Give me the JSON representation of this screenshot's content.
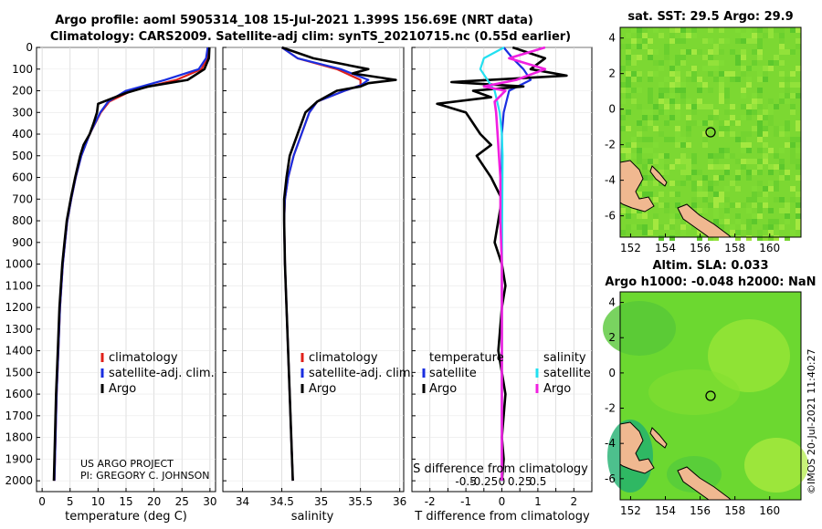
{
  "header": {
    "line1": "Argo profile: aoml 5905314_108 15-Jul-2021 1.399S 156.69E (NRT data)",
    "line2": "Climatology: CARS2009. Satellite-adj clim: synTS_20210715.nc (0.55d earlier)"
  },
  "depth_ticks": [
    "0",
    "100",
    "200",
    "300",
    "400",
    "500",
    "600",
    "700",
    "800",
    "900",
    "1000",
    "1100",
    "1200",
    "1300",
    "1400",
    "1500",
    "1600",
    "1700",
    "1800",
    "1900",
    "2000"
  ],
  "temp_panel": {
    "xlabel": "temperature (deg C)",
    "xticks": [
      "0",
      "5",
      "10",
      "15",
      "20",
      "25",
      "30"
    ],
    "legend": [
      "climatology",
      "satellite-adj. clim.",
      "Argo"
    ],
    "credit1": "US ARGO PROJECT",
    "credit2": "PI: GREGORY C. JOHNSON"
  },
  "sal_panel": {
    "xlabel": "salinity",
    "xticks": [
      "34",
      "34.5",
      "35",
      "35.5",
      "36"
    ],
    "legend": [
      "climatology",
      "satellite-adj. clim.",
      "Argo"
    ]
  },
  "diff_panel": {
    "xlabel": "T difference from climatology",
    "s_label": "S difference from climatology",
    "xticks_t": [
      "-2",
      "-1.5",
      "-1",
      "-0.5",
      "0",
      "0.5",
      "1",
      "1.5",
      "2"
    ],
    "xticks_s": [
      "-0.5",
      "-0.25",
      "0",
      "0.25",
      "0.5"
    ],
    "legend_temp_title": "temperature",
    "legend_sal_title": "salinity",
    "legend_temp": [
      "satellite",
      "Argo"
    ],
    "legend_sal": [
      "satellite",
      "Argo"
    ]
  },
  "map_sst": {
    "title": "sat. SST: 29.5 Argo: 29.9",
    "yticks": [
      "4",
      "2",
      "0",
      "-2",
      "-4",
      "-6"
    ],
    "xticks": [
      "152",
      "154",
      "156",
      "158",
      "160"
    ]
  },
  "map_sla": {
    "title1": "Altim. SLA: 0.033",
    "title2": "Argo h1000: -0.048 h2000: NaN",
    "yticks": [
      "4",
      "2",
      "0",
      "-2",
      "-4",
      "-6"
    ],
    "xticks": [
      "152",
      "154",
      "156",
      "158",
      "160"
    ]
  },
  "watermark": "©IMOS 20-Jul-2021 11:40:27",
  "colors": {
    "climatology": "#e0201a",
    "satellite_adj": "#1a2ee0",
    "argo": "#000000",
    "sat_sal": "#22e0f0",
    "argo_sal": "#f020e0",
    "land": "#f0b890"
  },
  "chart_data": [
    {
      "type": "line",
      "title": "temperature profile",
      "xlabel": "temperature (deg C)",
      "ylabel": "depth",
      "xlim": [
        -1,
        31
      ],
      "ylim": [
        2050,
        0
      ],
      "series": [
        {
          "name": "climatology",
          "depth": [
            0,
            50,
            100,
            150,
            200,
            250,
            300,
            400,
            500,
            600,
            700,
            800,
            900,
            1000,
            1200,
            1400,
            1600,
            1800,
            2000
          ],
          "values": [
            29.6,
            29.5,
            28.5,
            24,
            16,
            12,
            10.5,
            8.5,
            7,
            6,
            5.2,
            4.5,
            4.1,
            3.7,
            3.2,
            2.9,
            2.6,
            2.4,
            2.2
          ]
        },
        {
          "name": "satellite-adj. clim.",
          "depth": [
            0,
            50,
            100,
            150,
            200,
            250,
            300,
            400,
            500,
            600,
            700,
            800,
            900,
            1000,
            1200,
            1400,
            1600,
            1800,
            2000
          ],
          "values": [
            29.6,
            29.3,
            28,
            22,
            15,
            11.8,
            10.4,
            8.5,
            7,
            6,
            5.2,
            4.5,
            4.1,
            3.7,
            3.2,
            2.9,
            2.6,
            2.4,
            2.2
          ]
        },
        {
          "name": "Argo",
          "depth": [
            0,
            50,
            100,
            150,
            180,
            210,
            250,
            260,
            300,
            350,
            400,
            450,
            500,
            600,
            700,
            800,
            900,
            1000,
            1200,
            1400,
            1600,
            1800,
            2000
          ],
          "values": [
            29.9,
            29.8,
            29,
            26,
            19,
            15,
            11,
            10,
            9.8,
            9.2,
            8.5,
            7.4,
            6.8,
            5.9,
            5.1,
            4.4,
            4,
            3.6,
            3.1,
            2.8,
            2.5,
            2.3,
            2.1
          ]
        }
      ]
    },
    {
      "type": "line",
      "title": "salinity profile",
      "xlabel": "salinity",
      "ylabel": "depth",
      "xlim": [
        33.75,
        36.05
      ],
      "ylim": [
        2050,
        0
      ],
      "series": [
        {
          "name": "climatology",
          "depth": [
            0,
            50,
            100,
            150,
            175,
            200,
            250,
            300,
            400,
            500,
            600,
            700,
            800,
            1000,
            1200,
            1600,
            2000
          ],
          "values": [
            34.5,
            34.7,
            35.2,
            35.5,
            35.5,
            35.3,
            34.95,
            34.85,
            34.75,
            34.65,
            34.58,
            34.54,
            34.53,
            34.54,
            34.56,
            34.6,
            34.64
          ]
        },
        {
          "name": "satellite-adj. clim.",
          "depth": [
            0,
            50,
            100,
            150,
            175,
            200,
            250,
            300,
            400,
            500,
            600,
            700,
            800,
            1000,
            1200,
            1600,
            2000
          ],
          "values": [
            34.5,
            34.7,
            35.25,
            35.6,
            35.5,
            35.3,
            34.95,
            34.85,
            34.75,
            34.65,
            34.58,
            34.54,
            34.53,
            34.54,
            34.56,
            34.6,
            34.64
          ]
        },
        {
          "name": "Argo",
          "depth": [
            0,
            50,
            100,
            120,
            150,
            165,
            180,
            200,
            250,
            300,
            400,
            500,
            600,
            700,
            800,
            1000,
            1200,
            1600,
            2000
          ],
          "values": [
            34.5,
            34.9,
            35.6,
            35.4,
            35.95,
            35.6,
            35.5,
            35.2,
            34.95,
            34.8,
            34.7,
            34.6,
            34.56,
            34.53,
            34.53,
            34.54,
            34.56,
            34.6,
            34.64
          ]
        }
      ]
    },
    {
      "type": "line",
      "title": "difference from climatology",
      "xlabel": "T difference from climatology",
      "ylabel": "depth",
      "xlim": [
        -2.5,
        2.5
      ],
      "ylim": [
        2050,
        0
      ],
      "series": [
        {
          "name": "temperature satellite",
          "depth": [
            0,
            50,
            100,
            150,
            200,
            300,
            400,
            500,
            600,
            800,
            1000,
            1500,
            2000
          ],
          "values": [
            0.05,
            0.3,
            0.6,
            0.8,
            0.2,
            0.05,
            0,
            0,
            0,
            0,
            0,
            0,
            0
          ]
        },
        {
          "name": "temperature Argo",
          "depth": [
            0,
            50,
            100,
            130,
            160,
            180,
            200,
            230,
            260,
            300,
            350,
            400,
            450,
            500,
            550,
            600,
            700,
            800,
            900,
            1000,
            1100,
            1200,
            1400,
            1600,
            1800,
            1900,
            2000
          ],
          "values": [
            0.3,
            1.2,
            0.8,
            1.8,
            -1.4,
            0.6,
            -0.8,
            -0.3,
            -1.8,
            -1,
            -0.8,
            -0.6,
            -0.3,
            -0.7,
            -0.5,
            -0.3,
            0,
            -0.1,
            -0.2,
            0,
            0.1,
            0,
            -0.1,
            0.1,
            0,
            0.05,
            0
          ]
        },
        {
          "name": "salinity satellite",
          "depth": [
            0,
            50,
            100,
            150,
            200,
            300,
            400,
            500,
            1000,
            1500,
            2000
          ],
          "values": [
            0.03,
            -0.25,
            -0.3,
            -0.2,
            -0.1,
            -0.03,
            0,
            0.01,
            0,
            0,
            0
          ]
        },
        {
          "name": "salinity Argo",
          "depth": [
            0,
            50,
            100,
            150,
            180,
            200,
            250,
            300,
            400,
            500,
            600,
            800,
            1000,
            1500,
            2000
          ],
          "values": [
            0.6,
            0.1,
            0.6,
            0.2,
            -0.25,
            0.05,
            -0.1,
            -0.08,
            -0.06,
            -0.04,
            -0.02,
            -0.02,
            0,
            0,
            0
          ]
        }
      ]
    }
  ]
}
